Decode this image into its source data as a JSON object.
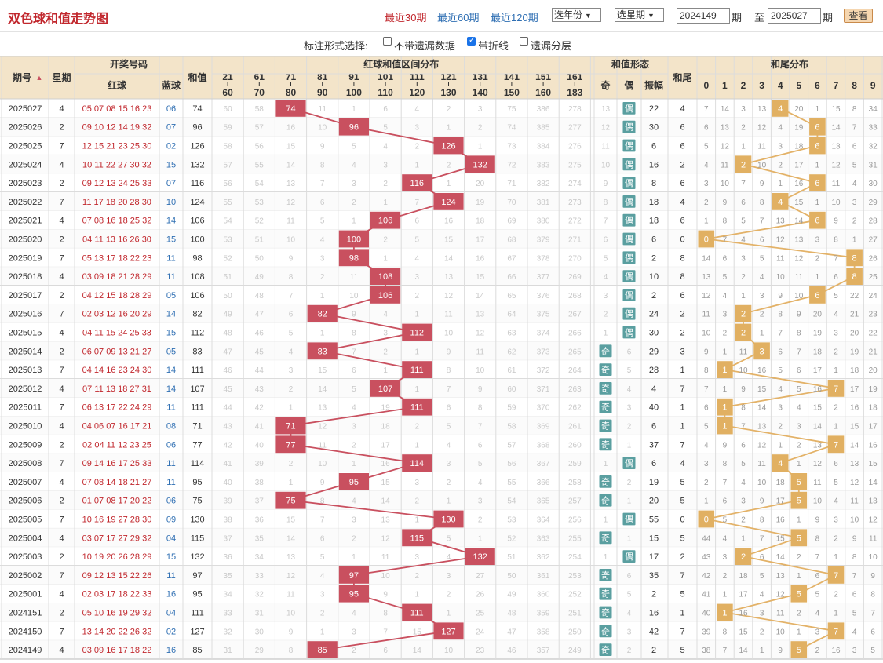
{
  "header": {
    "title": "双色球和值走势图",
    "ranges": [
      "最近30期",
      "最近60期",
      "最近120期"
    ],
    "year_select": "选年份",
    "issue_select": "选星期",
    "from_issue": "2024149",
    "unit": "期",
    "to_label": "至",
    "to_issue": "2025027",
    "view_button": "查看"
  },
  "options": {
    "label": "标注形式选择:",
    "items": [
      {
        "label": "不带遗漏数据",
        "checked": false
      },
      {
        "label": "带折线",
        "checked": true
      },
      {
        "label": "遗漏分层",
        "checked": false
      }
    ]
  },
  "table_headers": {
    "issue": "期号",
    "weekday": "星期",
    "draw": "开奖号码",
    "red": "红球",
    "blue": "蓝球",
    "sum": "和值",
    "zone_title": "红球和值区间分布",
    "zones": [
      [
        "21",
        "60"
      ],
      [
        "61",
        "70"
      ],
      [
        "71",
        "80"
      ],
      [
        "81",
        "90"
      ],
      [
        "91",
        "100"
      ],
      [
        "101",
        "110"
      ],
      [
        "111",
        "120"
      ],
      [
        "121",
        "130"
      ],
      [
        "131",
        "140"
      ],
      [
        "141",
        "150"
      ],
      [
        "151",
        "160"
      ],
      [
        "161",
        "183"
      ]
    ],
    "form_title": "和值形态",
    "odd": "奇",
    "even": "偶",
    "amp": "振幅",
    "tail": "和尾",
    "tail_dist_title": "和尾分布",
    "digits": [
      "0",
      "1",
      "2",
      "3",
      "4",
      "5",
      "6",
      "7",
      "8",
      "9"
    ]
  },
  "colors": {
    "accent_red": "#c9505f",
    "gold": "#e1b062",
    "teal": "#5a9fa0",
    "header_bg": "#f3e4c9"
  },
  "rows": [
    {
      "issue": "2025027",
      "wd": "4",
      "reds": "05 07 08 15 16 23",
      "blue": "06",
      "sum": "74",
      "zone": 2,
      "zv": [
        "60",
        "58",
        "74",
        "11",
        "1",
        "6",
        "4",
        "2",
        "3",
        "75",
        "386",
        "278"
      ],
      "parity": "even",
      "odd": "13",
      "even": "偶",
      "amp": "22",
      "tail": "4",
      "tv": [
        "7",
        "14",
        "3",
        "13",
        "4",
        "20",
        "1",
        "15",
        "8",
        "34"
      ]
    },
    {
      "issue": "2025026",
      "wd": "2",
      "reds": "09 10 12 14 19 32",
      "blue": "07",
      "sum": "96",
      "zone": 4,
      "zv": [
        "59",
        "57",
        "16",
        "10",
        "96",
        "5",
        "3",
        "1",
        "2",
        "74",
        "385",
        "277"
      ],
      "parity": "even",
      "odd": "12",
      "even": "偶",
      "amp": "30",
      "tail": "6",
      "tv": [
        "6",
        "13",
        "2",
        "12",
        "4",
        "19",
        "6",
        "14",
        "7",
        "33"
      ]
    },
    {
      "issue": "2025025",
      "wd": "7",
      "reds": "12 15 21 23 25 30",
      "blue": "02",
      "sum": "126",
      "zone": 7,
      "zv": [
        "58",
        "56",
        "15",
        "9",
        "5",
        "4",
        "2",
        "126",
        "1",
        "73",
        "384",
        "276"
      ],
      "parity": "even",
      "odd": "11",
      "even": "偶",
      "amp": "6",
      "tail": "6",
      "tv": [
        "5",
        "12",
        "1",
        "11",
        "3",
        "18",
        "6",
        "13",
        "6",
        "32"
      ]
    },
    {
      "issue": "2025024",
      "wd": "4",
      "reds": "10 11 22 27 30 32",
      "blue": "15",
      "sum": "132",
      "zone": 8,
      "zv": [
        "57",
        "55",
        "14",
        "8",
        "4",
        "3",
        "1",
        "2",
        "132",
        "72",
        "383",
        "275"
      ],
      "parity": "even",
      "odd": "10",
      "even": "偶",
      "amp": "16",
      "tail": "2",
      "tv": [
        "4",
        "11",
        "2",
        "10",
        "2",
        "17",
        "1",
        "12",
        "5",
        "31"
      ]
    },
    {
      "issue": "2025023",
      "wd": "2",
      "reds": "09 12 13 24 25 33",
      "blue": "07",
      "sum": "116",
      "zone": 6,
      "zv": [
        "56",
        "54",
        "13",
        "7",
        "3",
        "2",
        "116",
        "1",
        "20",
        "71",
        "382",
        "274"
      ],
      "parity": "even",
      "odd": "9",
      "even": "偶",
      "amp": "8",
      "tail": "6",
      "tv": [
        "3",
        "10",
        "7",
        "9",
        "1",
        "16",
        "6",
        "11",
        "4",
        "30"
      ]
    },
    {
      "issue": "2025022",
      "wd": "7",
      "reds": "11 17 18 20 28 30",
      "blue": "10",
      "sum": "124",
      "zone": 7,
      "zv": [
        "55",
        "53",
        "12",
        "6",
        "2",
        "1",
        "7",
        "124",
        "19",
        "70",
        "381",
        "273"
      ],
      "parity": "even",
      "odd": "8",
      "even": "偶",
      "amp": "18",
      "tail": "4",
      "tv": [
        "2",
        "9",
        "6",
        "8",
        "4",
        "15",
        "1",
        "10",
        "3",
        "29"
      ]
    },
    {
      "issue": "2025021",
      "wd": "4",
      "reds": "07 08 16 18 25 32",
      "blue": "14",
      "sum": "106",
      "zone": 5,
      "zv": [
        "54",
        "52",
        "11",
        "5",
        "1",
        "106",
        "6",
        "16",
        "18",
        "69",
        "380",
        "272"
      ],
      "parity": "even",
      "odd": "7",
      "even": "偶",
      "amp": "18",
      "tail": "6",
      "tv": [
        "1",
        "8",
        "5",
        "7",
        "13",
        "14",
        "6",
        "9",
        "2",
        "28"
      ]
    },
    {
      "issue": "2025020",
      "wd": "2",
      "reds": "04 11 13 16 26 30",
      "blue": "15",
      "sum": "100",
      "zone": 4,
      "zv": [
        "53",
        "51",
        "10",
        "4",
        "100",
        "2",
        "5",
        "15",
        "17",
        "68",
        "379",
        "271"
      ],
      "parity": "even",
      "odd": "6",
      "even": "偶",
      "amp": "6",
      "tail": "0",
      "tv": [
        "0",
        "7",
        "4",
        "6",
        "12",
        "13",
        "3",
        "8",
        "1",
        "27"
      ]
    },
    {
      "issue": "2025019",
      "wd": "7",
      "reds": "05 13 17 18 22 23",
      "blue": "11",
      "sum": "98",
      "zone": 4,
      "zv": [
        "52",
        "50",
        "9",
        "3",
        "98",
        "1",
        "4",
        "14",
        "16",
        "67",
        "378",
        "270"
      ],
      "parity": "even",
      "odd": "5",
      "even": "偶",
      "amp": "2",
      "tail": "8",
      "tv": [
        "14",
        "6",
        "3",
        "5",
        "11",
        "12",
        "2",
        "7",
        "8",
        "26"
      ]
    },
    {
      "issue": "2025018",
      "wd": "4",
      "reds": "03 09 18 21 28 29",
      "blue": "11",
      "sum": "108",
      "zone": 5,
      "zv": [
        "51",
        "49",
        "8",
        "2",
        "11",
        "108",
        "3",
        "13",
        "15",
        "66",
        "377",
        "269"
      ],
      "parity": "even",
      "odd": "4",
      "even": "偶",
      "amp": "10",
      "tail": "8",
      "tv": [
        "13",
        "5",
        "2",
        "4",
        "10",
        "11",
        "1",
        "6",
        "8",
        "25"
      ]
    },
    {
      "issue": "2025017",
      "wd": "2",
      "reds": "04 12 15 18 28 29",
      "blue": "05",
      "sum": "106",
      "zone": 5,
      "zv": [
        "50",
        "48",
        "7",
        "1",
        "10",
        "106",
        "2",
        "12",
        "14",
        "65",
        "376",
        "268"
      ],
      "parity": "even",
      "odd": "3",
      "even": "偶",
      "amp": "2",
      "tail": "6",
      "tv": [
        "12",
        "4",
        "1",
        "3",
        "9",
        "10",
        "6",
        "5",
        "22",
        "24"
      ]
    },
    {
      "issue": "2025016",
      "wd": "7",
      "reds": "02 03 12 16 20 29",
      "blue": "14",
      "sum": "82",
      "zone": 3,
      "zv": [
        "49",
        "47",
        "6",
        "82",
        "9",
        "4",
        "1",
        "11",
        "13",
        "64",
        "375",
        "267"
      ],
      "parity": "even",
      "odd": "2",
      "even": "偶",
      "amp": "24",
      "tail": "2",
      "tv": [
        "11",
        "3",
        "2",
        "2",
        "8",
        "9",
        "20",
        "4",
        "21",
        "23"
      ]
    },
    {
      "issue": "2025015",
      "wd": "4",
      "reds": "04 11 15 24 25 33",
      "blue": "15",
      "sum": "112",
      "zone": 6,
      "zv": [
        "48",
        "46",
        "5",
        "1",
        "8",
        "3",
        "112",
        "10",
        "12",
        "63",
        "374",
        "266"
      ],
      "parity": "even",
      "odd": "1",
      "even": "偶",
      "amp": "30",
      "tail": "2",
      "tv": [
        "10",
        "2",
        "2",
        "1",
        "7",
        "8",
        "19",
        "3",
        "20",
        "22"
      ]
    },
    {
      "issue": "2025014",
      "wd": "2",
      "reds": "06 07 09 13 21 27",
      "blue": "05",
      "sum": "83",
      "zone": 3,
      "zv": [
        "47",
        "45",
        "4",
        "83",
        "7",
        "2",
        "1",
        "9",
        "11",
        "62",
        "373",
        "265"
      ],
      "parity": "odd",
      "odd": "奇",
      "even": "6",
      "amp": "29",
      "tail": "3",
      "tv": [
        "9",
        "1",
        "11",
        "3",
        "6",
        "7",
        "18",
        "2",
        "19",
        "21"
      ]
    },
    {
      "issue": "2025013",
      "wd": "7",
      "reds": "04 14 16 23 24 30",
      "blue": "14",
      "sum": "111",
      "zone": 6,
      "zv": [
        "46",
        "44",
        "3",
        "15",
        "6",
        "1",
        "111",
        "8",
        "10",
        "61",
        "372",
        "264"
      ],
      "parity": "odd",
      "odd": "奇",
      "even": "5",
      "amp": "28",
      "tail": "1",
      "tv": [
        "8",
        "1",
        "10",
        "16",
        "5",
        "6",
        "17",
        "1",
        "18",
        "20"
      ]
    },
    {
      "issue": "2025012",
      "wd": "4",
      "reds": "07 11 13 18 27 31",
      "blue": "14",
      "sum": "107",
      "zone": 5,
      "zv": [
        "45",
        "43",
        "2",
        "14",
        "5",
        "107",
        "1",
        "7",
        "9",
        "60",
        "371",
        "263"
      ],
      "parity": "odd",
      "odd": "奇",
      "even": "4",
      "amp": "4",
      "tail": "7",
      "tv": [
        "7",
        "1",
        "9",
        "15",
        "4",
        "5",
        "16",
        "7",
        "17",
        "19"
      ]
    },
    {
      "issue": "2025011",
      "wd": "7",
      "reds": "06 13 17 22 24 29",
      "blue": "11",
      "sum": "111",
      "zone": 6,
      "zv": [
        "44",
        "42",
        "1",
        "13",
        "4",
        "19",
        "111",
        "6",
        "8",
        "59",
        "370",
        "262"
      ],
      "parity": "odd",
      "odd": "奇",
      "even": "3",
      "amp": "40",
      "tail": "1",
      "tv": [
        "6",
        "1",
        "8",
        "14",
        "3",
        "4",
        "15",
        "2",
        "16",
        "18"
      ]
    },
    {
      "issue": "2025010",
      "wd": "4",
      "reds": "04 06 07 16 17 21",
      "blue": "08",
      "sum": "71",
      "zone": 2,
      "zv": [
        "43",
        "41",
        "71",
        "12",
        "3",
        "18",
        "2",
        "5",
        "7",
        "58",
        "369",
        "261"
      ],
      "parity": "odd",
      "odd": "奇",
      "even": "2",
      "amp": "6",
      "tail": "1",
      "tv": [
        "5",
        "1",
        "7",
        "13",
        "2",
        "3",
        "14",
        "1",
        "15",
        "17"
      ]
    },
    {
      "issue": "2025009",
      "wd": "2",
      "reds": "02 04 11 12 23 25",
      "blue": "06",
      "sum": "77",
      "zone": 2,
      "zv": [
        "42",
        "40",
        "77",
        "11",
        "2",
        "17",
        "1",
        "4",
        "6",
        "57",
        "368",
        "260"
      ],
      "parity": "odd",
      "odd": "奇",
      "even": "1",
      "amp": "37",
      "tail": "7",
      "tv": [
        "4",
        "9",
        "6",
        "12",
        "1",
        "2",
        "13",
        "7",
        "14",
        "16"
      ]
    },
    {
      "issue": "2025008",
      "wd": "7",
      "reds": "09 14 16 17 25 33",
      "blue": "11",
      "sum": "114",
      "zone": 6,
      "zv": [
        "41",
        "39",
        "2",
        "10",
        "1",
        "16",
        "114",
        "3",
        "5",
        "56",
        "367",
        "259"
      ],
      "parity": "even",
      "odd": "1",
      "even": "偶",
      "amp": "6",
      "tail": "4",
      "tv": [
        "3",
        "8",
        "5",
        "11",
        "4",
        "1",
        "12",
        "6",
        "13",
        "15"
      ]
    },
    {
      "issue": "2025007",
      "wd": "4",
      "reds": "07 08 14 18 21 27",
      "blue": "11",
      "sum": "95",
      "zone": 4,
      "zv": [
        "40",
        "38",
        "1",
        "9",
        "95",
        "15",
        "3",
        "2",
        "4",
        "55",
        "366",
        "258"
      ],
      "parity": "odd",
      "odd": "奇",
      "even": "2",
      "amp": "19",
      "tail": "5",
      "tv": [
        "2",
        "7",
        "4",
        "10",
        "18",
        "5",
        "11",
        "5",
        "12",
        "14"
      ]
    },
    {
      "issue": "2025006",
      "wd": "2",
      "reds": "01 07 08 17 20 22",
      "blue": "06",
      "sum": "75",
      "zone": 2,
      "zv": [
        "39",
        "37",
        "75",
        "8",
        "4",
        "14",
        "2",
        "1",
        "3",
        "54",
        "365",
        "257"
      ],
      "parity": "odd",
      "odd": "奇",
      "even": "1",
      "amp": "20",
      "tail": "5",
      "tv": [
        "1",
        "6",
        "3",
        "9",
        "17",
        "5",
        "10",
        "4",
        "11",
        "13"
      ]
    },
    {
      "issue": "2025005",
      "wd": "7",
      "reds": "10 16 19 27 28 30",
      "blue": "09",
      "sum": "130",
      "zone": 7,
      "zv": [
        "38",
        "36",
        "15",
        "7",
        "3",
        "13",
        "1",
        "130",
        "2",
        "53",
        "364",
        "256"
      ],
      "parity": "even",
      "odd": "1",
      "even": "偶",
      "amp": "55",
      "tail": "0",
      "tv": [
        "0",
        "5",
        "2",
        "8",
        "16",
        "1",
        "9",
        "3",
        "10",
        "12"
      ]
    },
    {
      "issue": "2025004",
      "wd": "4",
      "reds": "03 07 17 27 29 32",
      "blue": "04",
      "sum": "115",
      "zone": 6,
      "zv": [
        "37",
        "35",
        "14",
        "6",
        "2",
        "12",
        "115",
        "5",
        "1",
        "52",
        "363",
        "255"
      ],
      "parity": "odd",
      "odd": "奇",
      "even": "1",
      "amp": "15",
      "tail": "5",
      "tv": [
        "44",
        "4",
        "1",
        "7",
        "15",
        "5",
        "8",
        "2",
        "9",
        "11"
      ]
    },
    {
      "issue": "2025003",
      "wd": "2",
      "reds": "10 19 20 26 28 29",
      "blue": "15",
      "sum": "132",
      "zone": 8,
      "zv": [
        "36",
        "34",
        "13",
        "5",
        "1",
        "11",
        "3",
        "4",
        "132",
        "51",
        "362",
        "254"
      ],
      "parity": "even",
      "odd": "1",
      "even": "偶",
      "amp": "17",
      "tail": "2",
      "tv": [
        "43",
        "3",
        "2",
        "6",
        "14",
        "2",
        "7",
        "1",
        "8",
        "10"
      ]
    },
    {
      "issue": "2025002",
      "wd": "7",
      "reds": "09 12 13 15 22 26",
      "blue": "11",
      "sum": "97",
      "zone": 4,
      "zv": [
        "35",
        "33",
        "12",
        "4",
        "97",
        "10",
        "2",
        "3",
        "27",
        "50",
        "361",
        "253"
      ],
      "parity": "odd",
      "odd": "奇",
      "even": "6",
      "amp": "35",
      "tail": "7",
      "tv": [
        "42",
        "2",
        "18",
        "5",
        "13",
        "1",
        "6",
        "7",
        "7",
        "9"
      ]
    },
    {
      "issue": "2025001",
      "wd": "4",
      "reds": "02 03 17 18 22 33",
      "blue": "16",
      "sum": "95",
      "zone": 4,
      "zv": [
        "34",
        "32",
        "11",
        "3",
        "95",
        "9",
        "1",
        "2",
        "26",
        "49",
        "360",
        "252"
      ],
      "parity": "odd",
      "odd": "奇",
      "even": "5",
      "amp": "2",
      "tail": "5",
      "tv": [
        "41",
        "1",
        "17",
        "4",
        "12",
        "5",
        "5",
        "2",
        "6",
        "8"
      ]
    },
    {
      "issue": "2024151",
      "wd": "2",
      "reds": "05 10 16 19 29 32",
      "blue": "04",
      "sum": "111",
      "zone": 6,
      "zv": [
        "33",
        "31",
        "10",
        "2",
        "4",
        "8",
        "111",
        "1",
        "25",
        "48",
        "359",
        "251"
      ],
      "parity": "odd",
      "odd": "奇",
      "even": "4",
      "amp": "16",
      "tail": "1",
      "tv": [
        "40",
        "1",
        "16",
        "3",
        "11",
        "2",
        "4",
        "1",
        "5",
        "7"
      ]
    },
    {
      "issue": "2024150",
      "wd": "7",
      "reds": "13 14 20 22 26 32",
      "blue": "02",
      "sum": "127",
      "zone": 7,
      "zv": [
        "32",
        "30",
        "9",
        "1",
        "3",
        "7",
        "15",
        "127",
        "24",
        "47",
        "358",
        "250"
      ],
      "parity": "odd",
      "odd": "奇",
      "even": "3",
      "amp": "42",
      "tail": "7",
      "tv": [
        "39",
        "8",
        "15",
        "2",
        "10",
        "1",
        "3",
        "7",
        "4",
        "6"
      ]
    },
    {
      "issue": "2024149",
      "wd": "4",
      "reds": "03 09 16 17 18 22",
      "blue": "16",
      "sum": "85",
      "zone": 3,
      "zv": [
        "31",
        "29",
        "8",
        "85",
        "2",
        "6",
        "14",
        "10",
        "23",
        "46",
        "357",
        "249"
      ],
      "parity": "odd",
      "odd": "奇",
      "even": "2",
      "amp": "2",
      "tail": "5",
      "tv": [
        "38",
        "7",
        "14",
        "1",
        "9",
        "5",
        "2",
        "16",
        "3",
        "5"
      ]
    }
  ]
}
